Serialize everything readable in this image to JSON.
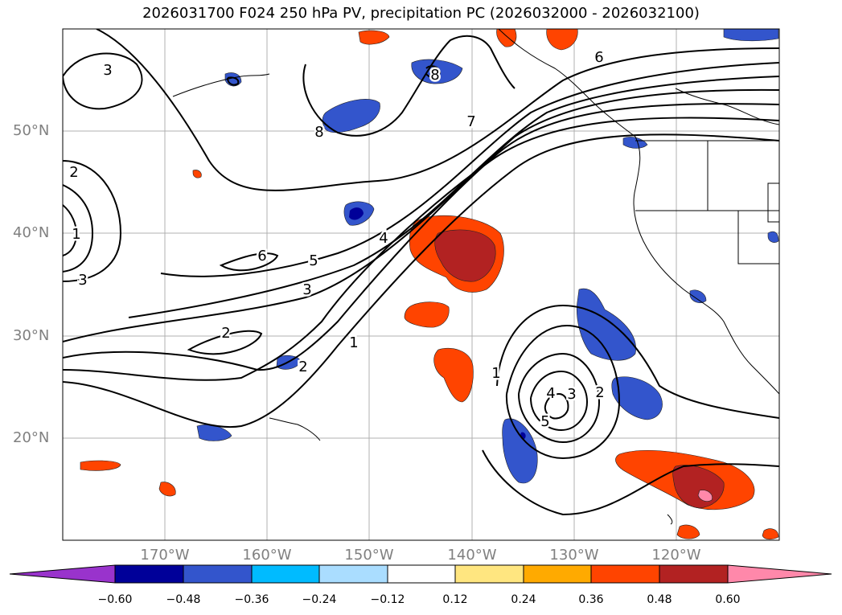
{
  "title": "2026031700 F024 250 hPa PV, precipitation PC (2026032000 - 2026032100)",
  "lat_labels": [
    "50°N",
    "40°N",
    "30°N",
    "20°N"
  ],
  "lon_labels": [
    "170°W",
    "160°W",
    "150°W",
    "140°W",
    "130°W",
    "120°W"
  ],
  "pv_contour_labels": [
    "3",
    "2",
    "1",
    "3",
    "6",
    "8",
    "6",
    "7",
    "5",
    "4",
    "3",
    "2",
    "2",
    "1",
    "1",
    "2",
    "3",
    "4",
    "5",
    "8"
  ],
  "colorbar": {
    "ticks": [
      "−0.60",
      "−0.48",
      "−0.36",
      "−0.24",
      "−0.12",
      "0.12",
      "0.24",
      "0.36",
      "0.48",
      "0.60"
    ],
    "colors": [
      "#9933cc",
      "#000099",
      "#3355cc",
      "#00bbff",
      "#aaddff",
      "#ffffff",
      "#ffe680",
      "#ffaa00",
      "#ff4400",
      "#b22222",
      "#ff88aa"
    ]
  }
}
